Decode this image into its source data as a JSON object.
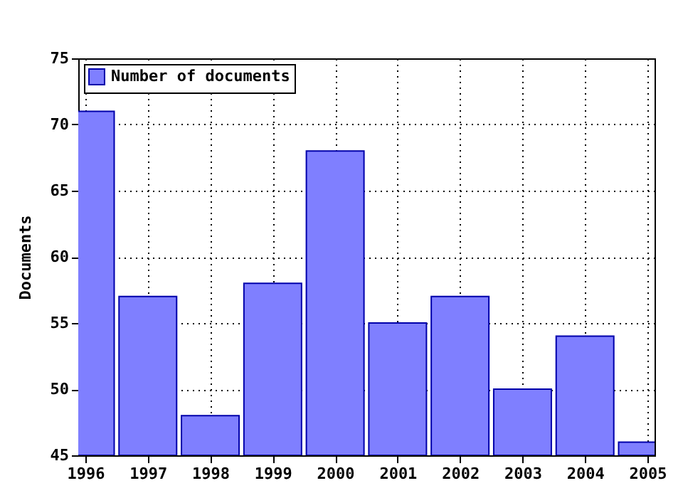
{
  "chart_data": {
    "type": "bar",
    "ylabel": "Documents",
    "x": [
      1996,
      1997,
      1998,
      1999,
      2000,
      2001,
      2002,
      2003,
      2004,
      2005
    ],
    "series": [
      {
        "name": "Number of documents",
        "color": "#7f7fff",
        "values": [
          71,
          57,
          48,
          58,
          68,
          55,
          57,
          50,
          54,
          46
        ]
      }
    ],
    "xlim": [
      1996,
      2005
    ],
    "xticks": [
      1996,
      1997,
      1998,
      1999,
      2000,
      2001,
      2002,
      2003,
      2004,
      2005
    ],
    "ylim": [
      45,
      75
    ],
    "yticks": [
      45,
      50,
      55,
      60,
      65,
      70,
      75
    ],
    "grid": true,
    "legend": "top left"
  }
}
